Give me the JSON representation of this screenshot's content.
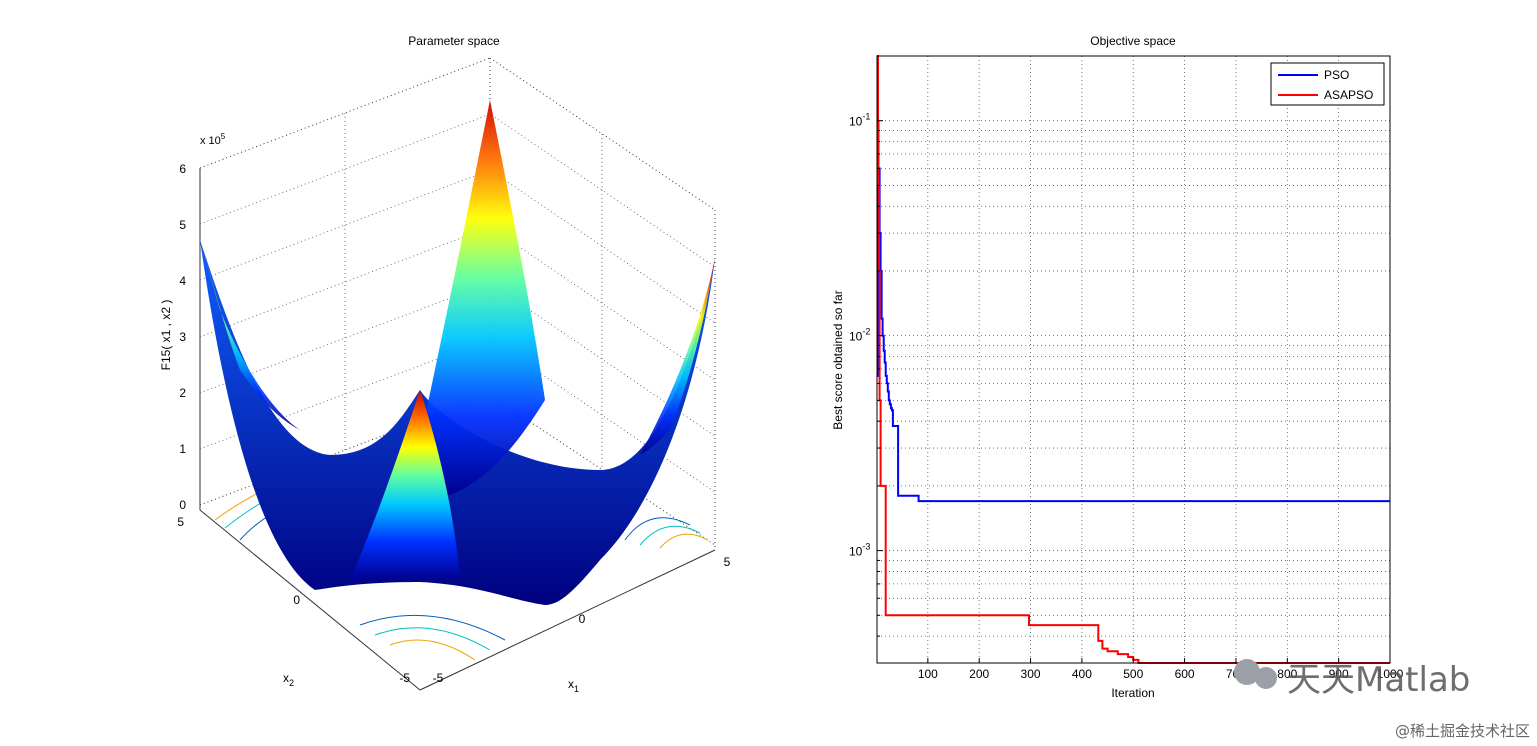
{
  "chart_data": [
    {
      "type": "surface",
      "title": "Parameter space",
      "zlabel": "F15( x1 , x2 )",
      "xlabel": "x1",
      "ylabel": "x2",
      "z_exponent_label": "x 10",
      "z_exponent": "5",
      "z_ticks": [
        "0",
        "1",
        "2",
        "3",
        "4",
        "5",
        "6"
      ],
      "x1_ticks": [
        "-5",
        "0",
        "5"
      ],
      "x2_ticks": [
        "-5",
        "0",
        "5"
      ],
      "xlim": [
        -5,
        5
      ],
      "ylim": [
        -5,
        5
      ],
      "zlim": [
        0,
        6
      ],
      "colormap": "jet",
      "grid": true
    },
    {
      "type": "line",
      "title": "Objective space",
      "xlabel": "Iteration",
      "ylabel": "Best score obtained so far",
      "y_scale": "log",
      "xlim": [
        1,
        1000
      ],
      "ylim": [
        0.0003,
        0.2
      ],
      "grid": true,
      "legend_position": "top-right",
      "x_ticks": [
        "100",
        "200",
        "300",
        "400",
        "500",
        "600",
        "700",
        "800",
        "900",
        "1000"
      ],
      "y_ticks": [
        {
          "base": "10",
          "exp": "-1",
          "value": 0.1
        },
        {
          "base": "10",
          "exp": "-2",
          "value": 0.01
        },
        {
          "base": "10",
          "exp": "-3",
          "value": 0.001
        }
      ],
      "series": [
        {
          "name": "PSO",
          "color": "#0000ff",
          "x": [
            1,
            4,
            6,
            8,
            10,
            12,
            14,
            16,
            18,
            20,
            22,
            24,
            26,
            28,
            30,
            32,
            34,
            38,
            40,
            42,
            44,
            60,
            80,
            82,
            1000
          ],
          "y": [
            0.0065,
            0.06,
            0.03,
            0.02,
            0.012,
            0.01,
            0.0085,
            0.0075,
            0.0065,
            0.006,
            0.0055,
            0.005,
            0.0048,
            0.0046,
            0.0045,
            0.0038,
            0.0038,
            0.0038,
            0.0038,
            0.0018,
            0.0018,
            0.0018,
            0.0018,
            0.0017,
            0.0017
          ]
        },
        {
          "name": "ASAPSO",
          "color": "#ff0000",
          "x": [
            1,
            2,
            3,
            4,
            5,
            6,
            8,
            10,
            14,
            16,
            18,
            20,
            295,
            297,
            430,
            432,
            440,
            450,
            460,
            470,
            480,
            490,
            500,
            510,
            520,
            600,
            700,
            800,
            850,
            1000
          ],
          "y": [
            0.2,
            0.2,
            0.1,
            0.05,
            0.02,
            0.005,
            0.002,
            0.002,
            0.002,
            0.002,
            0.0005,
            0.0005,
            0.0005,
            0.00045,
            0.00045,
            0.00038,
            0.00035,
            0.00034,
            0.00034,
            0.00033,
            0.00033,
            0.00032,
            0.00031,
            0.0003,
            0.0003,
            0.0003,
            0.0003,
            0.0003,
            0.0003,
            0.0003
          ]
        }
      ]
    }
  ],
  "watermarks": {
    "brand": "天天Matlab",
    "community": "@稀土掘金技术社区"
  }
}
